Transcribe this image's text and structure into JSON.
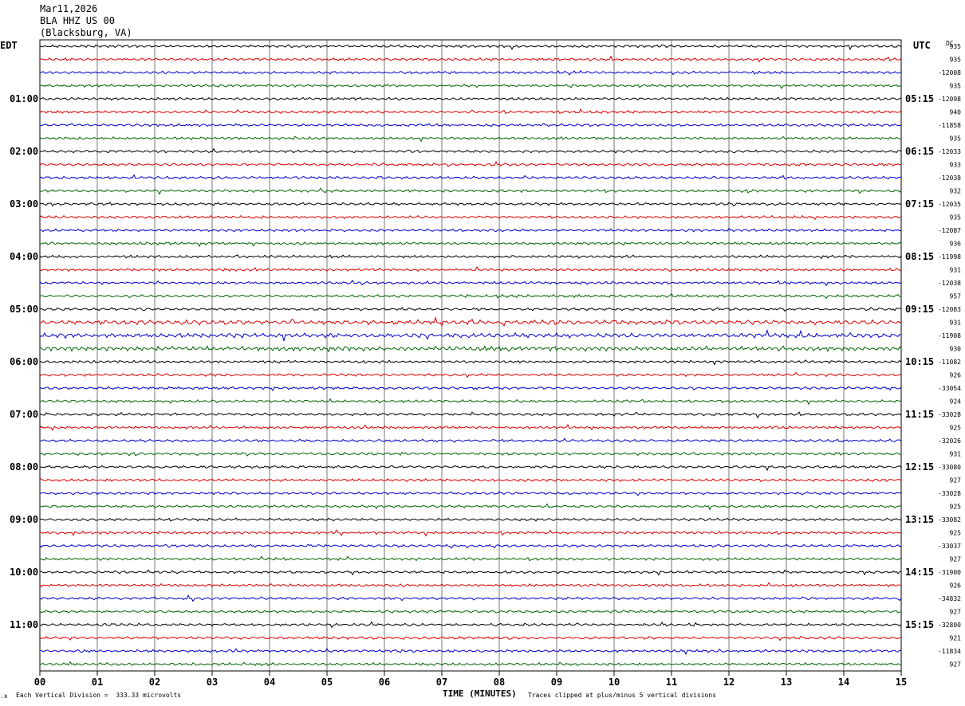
{
  "header": {
    "date": "Mar11,2026",
    "station": "BLA HHZ US 00",
    "location": "(Blacksburg, VA)"
  },
  "left_tz": "EDT",
  "right_tz": "UTC",
  "dc_label": "DC",
  "footer": {
    "vertical_division": "Each Vertical Division =  333.33 microvolts",
    "x_title": "TIME (MINUTES)",
    "clip_note": "Traces clipped at plus/minus 5 vertical divisions"
  },
  "colors": {
    "trace_cycle": [
      "#000000",
      "#dd0000",
      "#0000cc",
      "#006600"
    ],
    "grid": "#000000"
  },
  "chart_data": {
    "type": "line",
    "title": "BLA HHZ US 00",
    "xlabel": "TIME (MINUTES)",
    "xlim": [
      0,
      15
    ],
    "x_ticks": [
      "00",
      "01",
      "02",
      "03",
      "04",
      "05",
      "06",
      "07",
      "08",
      "09",
      "10",
      "11",
      "12",
      "13",
      "14",
      "15"
    ],
    "rows": 48,
    "left_hour_labels": [
      "01:00",
      "02:00",
      "03:00",
      "04:00",
      "05:00",
      "06:00",
      "07:00",
      "08:00",
      "09:00",
      "10:00",
      "11:00"
    ],
    "right_hour_labels": [
      "05:15",
      "06:15",
      "07:15",
      "08:15",
      "09:15",
      "10:15",
      "11:15",
      "12:15",
      "13:15",
      "14:15",
      "15:15"
    ],
    "dc_values": [
      "935",
      "935",
      "-12008",
      "935",
      "-12098",
      "940",
      "-11858",
      "935",
      "-12033",
      "933",
      "-12038",
      "932",
      "-12035",
      "935",
      "-12087",
      "936",
      "-11998",
      "931",
      "-12038",
      "957",
      "-12083",
      "931",
      "-11908",
      "930",
      "-11082",
      "926",
      "-33054",
      "924",
      "-33028",
      "925",
      "-32026",
      "931",
      "-33080",
      "927",
      "-33028",
      "925",
      "-33082",
      "925",
      "-33037",
      "927",
      "-31900",
      "926",
      "-34832",
      "927",
      "-32800",
      "921",
      "-11834",
      "927"
    ]
  }
}
